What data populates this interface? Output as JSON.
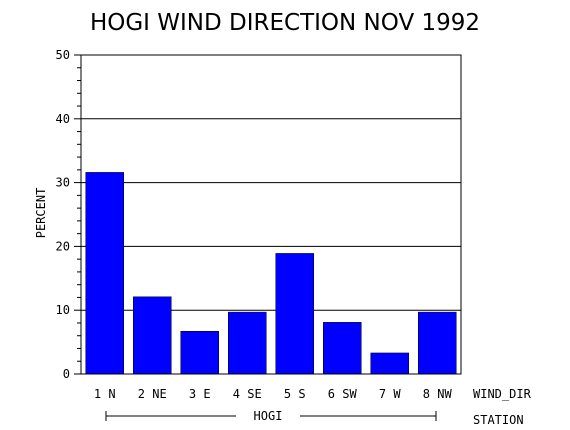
{
  "chart_data": {
    "type": "bar",
    "title": "HOGI WIND DIRECTION NOV 1992",
    "ylabel": "PERCENT",
    "xlabel": "WIND_DIR",
    "group_axis_label": "STATION",
    "group_label": "HOGI",
    "categories": [
      "1 N",
      "2 NE",
      "3 E",
      "4 SE",
      "5 S",
      "6 SW",
      "7 W",
      "8 NW"
    ],
    "values": [
      31.6,
      12.1,
      6.7,
      9.7,
      18.9,
      8.1,
      3.3,
      9.7
    ],
    "ylim": [
      0,
      50
    ],
    "yticks": [
      0,
      10,
      20,
      30,
      40,
      50
    ],
    "grid": true,
    "colors": {
      "bar": "#0000ff",
      "axis": "#000000"
    }
  }
}
